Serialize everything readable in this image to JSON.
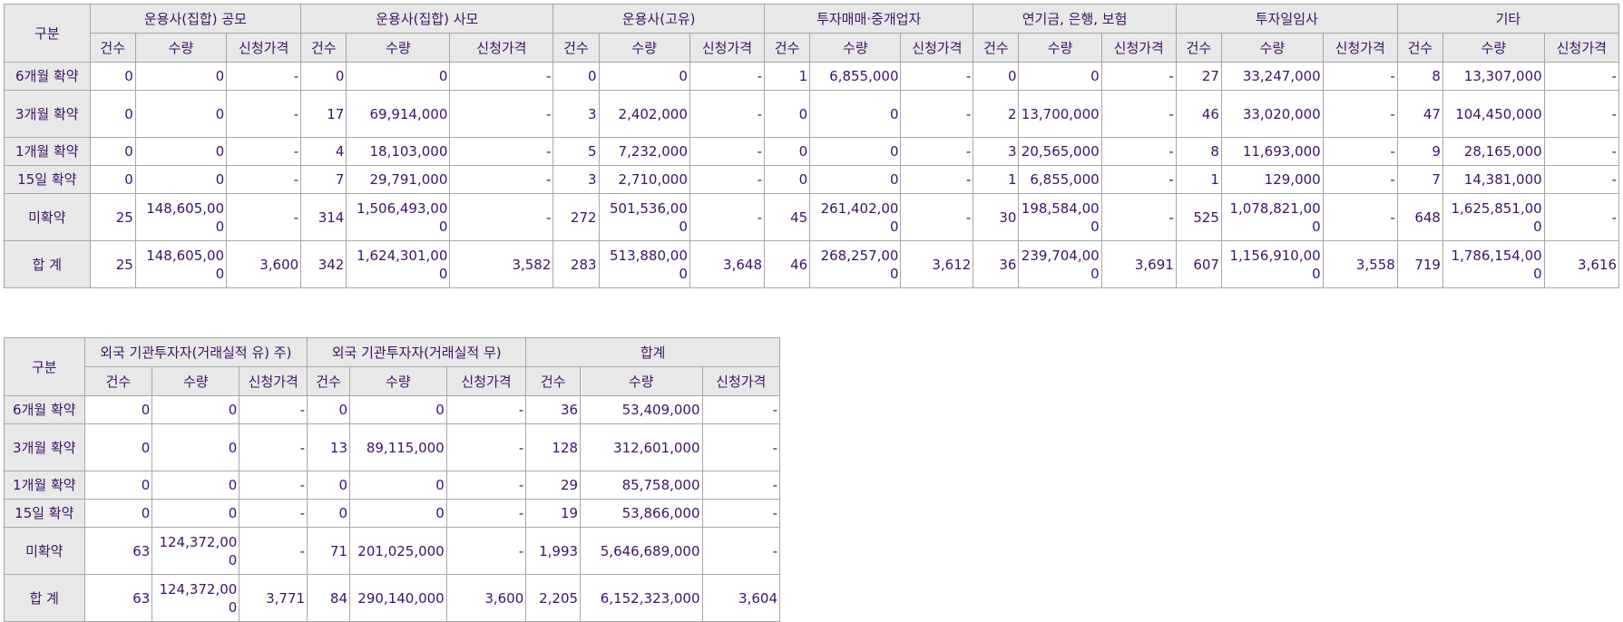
{
  "table1": {
    "corner": "구분",
    "groups": [
      "운용사(집합) 공모",
      "운용사(집합) 사모",
      "운용사(고유)",
      "투자매매·중개업자",
      "연기금, 은행, 보험",
      "투자일임사",
      "기타"
    ],
    "subheaders": [
      "건수",
      "수량",
      "신청가격"
    ],
    "rows": [
      {
        "label": "6개월 확약",
        "cells": [
          "0",
          "0",
          "-",
          "0",
          "0",
          "-",
          "0",
          "0",
          "-",
          "1",
          "6,855,000",
          "-",
          "0",
          "0",
          "-",
          "27",
          "33,247,000",
          "-",
          "8",
          "13,307,000",
          "-"
        ]
      },
      {
        "label": "3개월 확약",
        "cells": [
          "0",
          "0",
          "-",
          "17",
          "69,914,000",
          "-",
          "3",
          "2,402,000",
          "-",
          "0",
          "0",
          "-",
          "2",
          "13,700,000",
          "-",
          "46",
          "33,020,000",
          "-",
          "47",
          "104,450,000",
          "-"
        ]
      },
      {
        "label": "1개월 확약",
        "cells": [
          "0",
          "0",
          "-",
          "4",
          "18,103,000",
          "-",
          "5",
          "7,232,000",
          "-",
          "0",
          "0",
          "-",
          "3",
          "20,565,000",
          "-",
          "8",
          "11,693,000",
          "-",
          "9",
          "28,165,000",
          "-"
        ]
      },
      {
        "label": "15일 확약",
        "cells": [
          "0",
          "0",
          "-",
          "7",
          "29,791,000",
          "-",
          "3",
          "2,710,000",
          "-",
          "0",
          "0",
          "-",
          "1",
          "6,855,000",
          "-",
          "1",
          "129,000",
          "-",
          "7",
          "14,381,000",
          "-"
        ]
      },
      {
        "label": "미확약",
        "cells": [
          "25",
          "148,605,000",
          "-",
          "314",
          "1,506,493,000",
          "-",
          "272",
          "501,536,000",
          "-",
          "45",
          "261,402,000",
          "-",
          "30",
          "198,584,000",
          "-",
          "525",
          "1,078,821,000",
          "-",
          "648",
          "1,625,851,000",
          "-"
        ]
      },
      {
        "label": "합 계",
        "cells": [
          "25",
          "148,605,000",
          "3,600",
          "342",
          "1,624,301,000",
          "3,582",
          "283",
          "513,880,000",
          "3,648",
          "46",
          "268,257,000",
          "3,612",
          "36",
          "239,704,000",
          "3,691",
          "607",
          "1,156,910,000",
          "3,558",
          "719",
          "1,786,154,000",
          "3,616"
        ]
      }
    ]
  },
  "table2": {
    "corner": "구분",
    "groups": [
      "외국 기관투자자(거래실적 유) 주)",
      "외국 기관투자자(거래실적 무)",
      "합계"
    ],
    "subheaders": [
      "건수",
      "수량",
      "신청가격"
    ],
    "rows": [
      {
        "label": "6개월 확약",
        "cells": [
          "0",
          "0",
          "-",
          "0",
          "0",
          "-",
          "36",
          "53,409,000",
          "-"
        ]
      },
      {
        "label": "3개월 확약",
        "cells": [
          "0",
          "0",
          "-",
          "13",
          "89,115,000",
          "-",
          "128",
          "312,601,000",
          "-"
        ]
      },
      {
        "label": "1개월 확약",
        "cells": [
          "0",
          "0",
          "-",
          "0",
          "0",
          "-",
          "29",
          "85,758,000",
          "-"
        ]
      },
      {
        "label": "15일 확약",
        "cells": [
          "0",
          "0",
          "-",
          "0",
          "0",
          "-",
          "19",
          "53,866,000",
          "-"
        ]
      },
      {
        "label": "미확약",
        "cells": [
          "63",
          "124,372,000",
          "-",
          "71",
          "201,025,000",
          "-",
          "1,993",
          "5,646,689,000",
          "-"
        ]
      },
      {
        "label": "합 계",
        "cells": [
          "63",
          "124,372,000",
          "3,771",
          "84",
          "290,140,000",
          "3,600",
          "2,205",
          "6,152,323,000",
          "3,604"
        ]
      }
    ]
  }
}
